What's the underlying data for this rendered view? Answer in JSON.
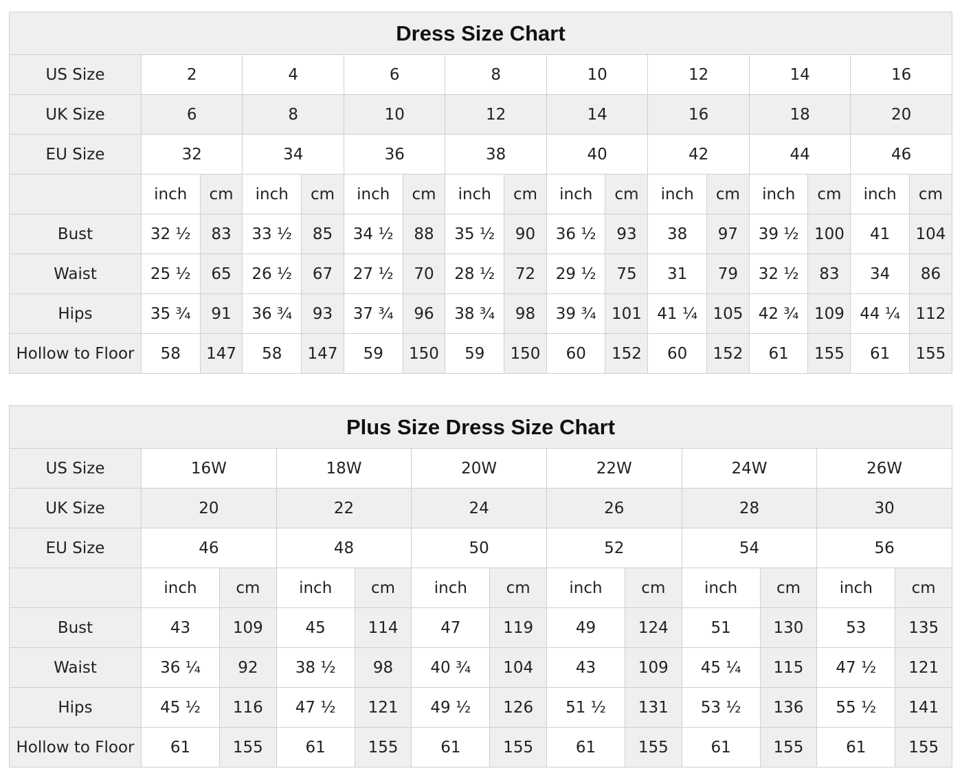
{
  "tables": [
    {
      "title": "Dress Size Chart",
      "size_rows": [
        {
          "label": "US Size",
          "values": [
            "2",
            "4",
            "6",
            "8",
            "10",
            "12",
            "14",
            "16"
          ]
        },
        {
          "label": "UK Size",
          "values": [
            "6",
            "8",
            "10",
            "12",
            "14",
            "16",
            "18",
            "20"
          ]
        },
        {
          "label": "EU Size",
          "values": [
            "32",
            "34",
            "36",
            "38",
            "40",
            "42",
            "44",
            "46"
          ]
        }
      ],
      "units": [
        "inch",
        "cm"
      ],
      "measure_rows": [
        {
          "label": "Bust",
          "values": [
            [
              "32 ½",
              "83"
            ],
            [
              "33 ½",
              "85"
            ],
            [
              "34 ½",
              "88"
            ],
            [
              "35 ½",
              "90"
            ],
            [
              "36 ½",
              "93"
            ],
            [
              "38",
              "97"
            ],
            [
              "39 ½",
              "100"
            ],
            [
              "41",
              "104"
            ]
          ]
        },
        {
          "label": "Waist",
          "values": [
            [
              "25 ½",
              "65"
            ],
            [
              "26 ½",
              "67"
            ],
            [
              "27 ½",
              "70"
            ],
            [
              "28 ½",
              "72"
            ],
            [
              "29 ½",
              "75"
            ],
            [
              "31",
              "79"
            ],
            [
              "32 ½",
              "83"
            ],
            [
              "34",
              "86"
            ]
          ]
        },
        {
          "label": "Hips",
          "values": [
            [
              "35 ¾",
              "91"
            ],
            [
              "36 ¾",
              "93"
            ],
            [
              "37 ¾",
              "96"
            ],
            [
              "38 ¾",
              "98"
            ],
            [
              "39 ¾",
              "101"
            ],
            [
              "41 ¼",
              "105"
            ],
            [
              "42 ¾",
              "109"
            ],
            [
              "44 ¼",
              "112"
            ]
          ]
        },
        {
          "label": "Hollow to Floor",
          "values": [
            [
              "58",
              "147"
            ],
            [
              "58",
              "147"
            ],
            [
              "59",
              "150"
            ],
            [
              "59",
              "150"
            ],
            [
              "60",
              "152"
            ],
            [
              "60",
              "152"
            ],
            [
              "61",
              "155"
            ],
            [
              "61",
              "155"
            ]
          ]
        }
      ]
    },
    {
      "title": "Plus Size Dress Size Chart",
      "size_rows": [
        {
          "label": "US Size",
          "values": [
            "16W",
            "18W",
            "20W",
            "22W",
            "24W",
            "26W"
          ]
        },
        {
          "label": "UK Size",
          "values": [
            "20",
            "22",
            "24",
            "26",
            "28",
            "30"
          ]
        },
        {
          "label": "EU Size",
          "values": [
            "46",
            "48",
            "50",
            "52",
            "54",
            "56"
          ]
        }
      ],
      "units": [
        "inch",
        "cm"
      ],
      "measure_rows": [
        {
          "label": "Bust",
          "values": [
            [
              "43",
              "109"
            ],
            [
              "45",
              "114"
            ],
            [
              "47",
              "119"
            ],
            [
              "49",
              "124"
            ],
            [
              "51",
              "130"
            ],
            [
              "53",
              "135"
            ]
          ]
        },
        {
          "label": "Waist",
          "values": [
            [
              "36 ¼",
              "92"
            ],
            [
              "38 ½",
              "98"
            ],
            [
              "40 ¾",
              "104"
            ],
            [
              "43",
              "109"
            ],
            [
              "45 ¼",
              "115"
            ],
            [
              "47 ½",
              "121"
            ]
          ]
        },
        {
          "label": "Hips",
          "values": [
            [
              "45 ½",
              "116"
            ],
            [
              "47 ½",
              "121"
            ],
            [
              "49 ½",
              "126"
            ],
            [
              "51 ½",
              "131"
            ],
            [
              "53 ½",
              "136"
            ],
            [
              "55 ½",
              "141"
            ]
          ]
        },
        {
          "label": "Hollow to Floor",
          "values": [
            [
              "61",
              "155"
            ],
            [
              "61",
              "155"
            ],
            [
              "61",
              "155"
            ],
            [
              "61",
              "155"
            ],
            [
              "61",
              "155"
            ],
            [
              "61",
              "155"
            ]
          ]
        }
      ]
    }
  ]
}
